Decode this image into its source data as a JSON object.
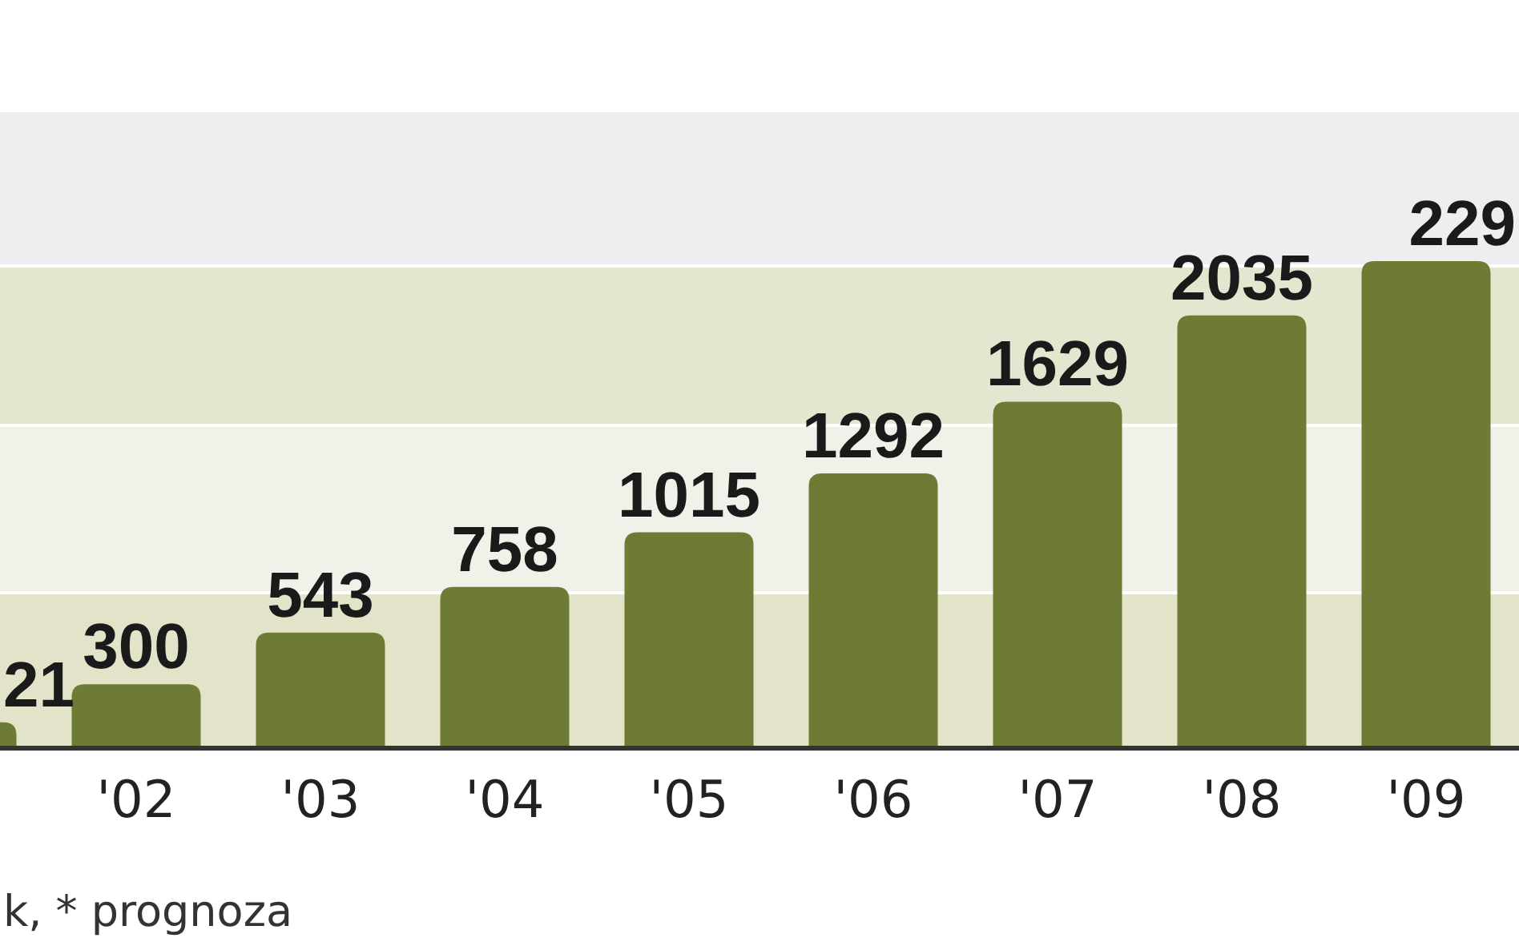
{
  "chart_data": {
    "type": "bar",
    "categories": [
      null,
      "'02",
      "'03",
      "'04",
      "'05",
      "'06",
      "'07",
      "'08",
      "'09"
    ],
    "values": [
      121,
      300,
      543,
      758,
      1015,
      1292,
      1629,
      2035,
      2290
    ],
    "value_labels": [
      null,
      "300",
      "543",
      "758",
      "1015",
      "1292",
      "1629",
      "2035",
      null
    ],
    "color": "#6e7b35",
    "annotations": [
      "k, * prognoza",
      "21",
      "229"
    ]
  }
}
